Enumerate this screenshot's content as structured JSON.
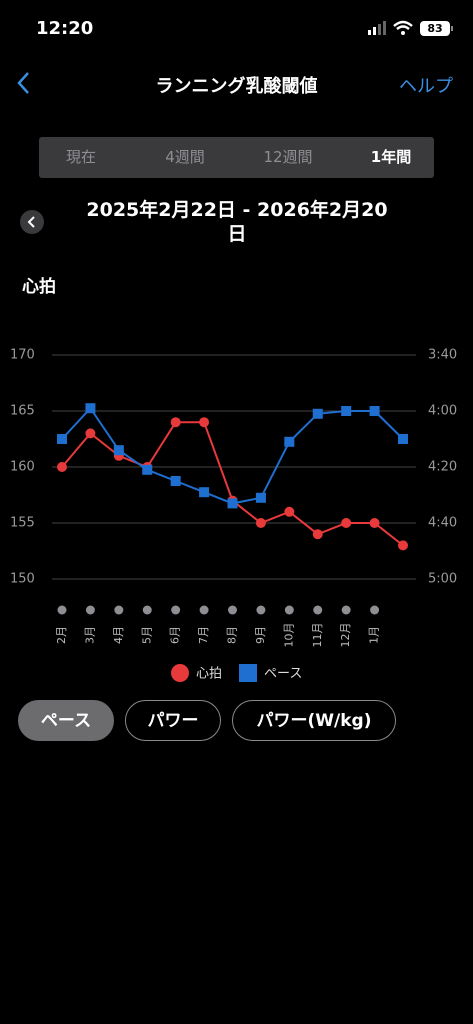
{
  "status_bar": {
    "time": "12:20",
    "battery": "83"
  },
  "nav": {
    "title": "ランニング乳酸閾値",
    "help": "ヘルプ"
  },
  "segments": {
    "items": [
      "現在",
      "4週間",
      "12週間",
      "1年間"
    ],
    "selected": 3
  },
  "date_range": "2025年2月22日 - 2026年2月20日",
  "metric_label": "心拍",
  "chart_data": {
    "type": "line",
    "categories": [
      "2月",
      "3月",
      "4月",
      "5月",
      "6月",
      "7月",
      "8月",
      "9月",
      "10月",
      "11月",
      "12月",
      "1月",
      null
    ],
    "ylim": [
      150,
      170
    ],
    "yticks": [
      150,
      155,
      160,
      165,
      170
    ],
    "y2lim": [
      300,
      220
    ],
    "y2ticks": [
      {
        "value": 220,
        "label": "3:40"
      },
      {
        "value": 240,
        "label": "4:00"
      },
      {
        "value": 260,
        "label": "4:20"
      },
      {
        "value": 280,
        "label": "4:40"
      },
      {
        "value": 300,
        "label": "5:00"
      }
    ],
    "grid": true,
    "series": [
      {
        "name": "心拍",
        "color": "#e8393b",
        "marker": "circle",
        "values": [
          160,
          163,
          161,
          160,
          164,
          164,
          157,
          155,
          156,
          154,
          155,
          155,
          153
        ]
      },
      {
        "name": "ペース",
        "color": "#1f6fd1",
        "marker": "square",
        "axis": "y2",
        "values": [
          250,
          239,
          254,
          261,
          265,
          269,
          273,
          271,
          251,
          241,
          240,
          240,
          250
        ]
      }
    ]
  },
  "buttons": {
    "items": [
      "ペース",
      "パワー",
      "パワー(W/kg)"
    ],
    "selected": 0
  }
}
